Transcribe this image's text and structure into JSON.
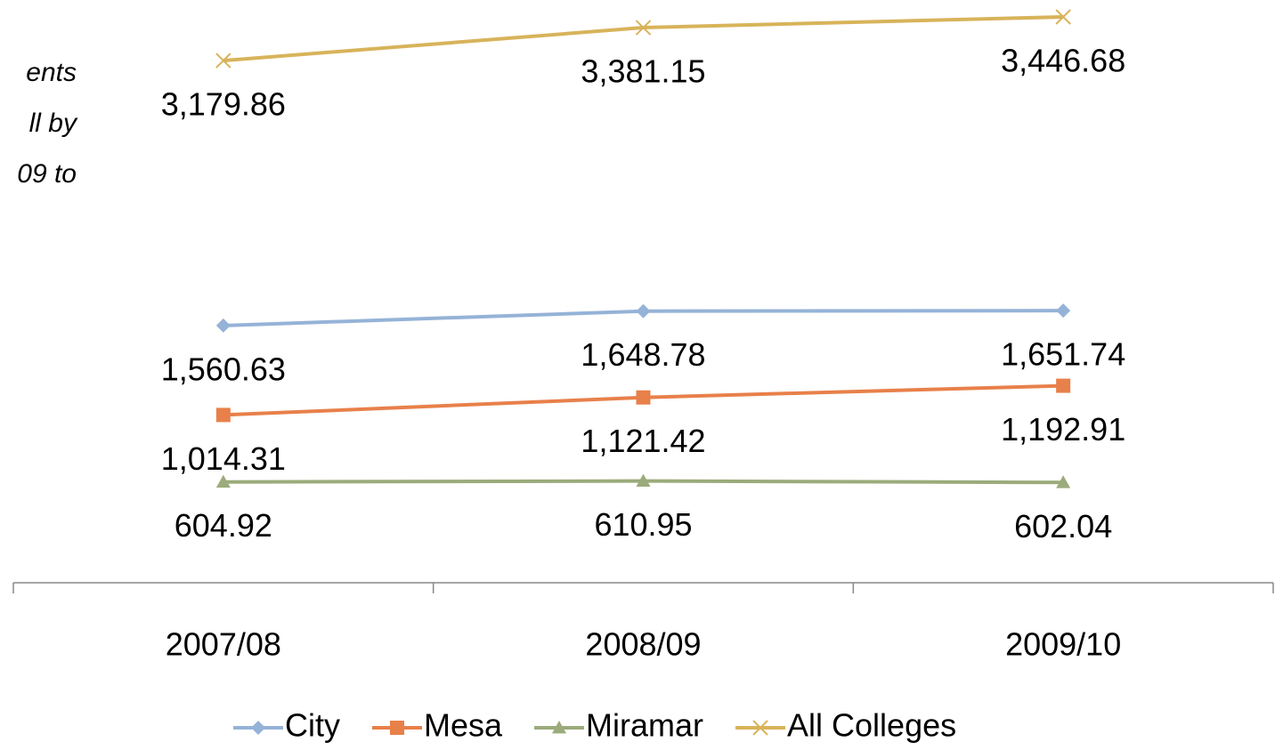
{
  "chart_data": {
    "type": "line",
    "annotations": [
      "ents",
      "ll by",
      "09 to"
    ],
    "categories": [
      "2007/08",
      "2008/09",
      "2009/10"
    ],
    "series": [
      {
        "name": "City",
        "color": "#95b3d7",
        "marker": "diamond",
        "values": [
          1560.63,
          1648.78,
          1651.74
        ],
        "value_labels": [
          "1,560.63",
          "1,648.78",
          "1,651.74"
        ]
      },
      {
        "name": "Mesa",
        "color": "#e8804a",
        "marker": "square",
        "values": [
          1014.31,
          1121.42,
          1192.91
        ],
        "value_labels": [
          "1,014.31",
          "1,121.42",
          "1,192.91"
        ]
      },
      {
        "name": "Miramar",
        "color": "#9bab7b",
        "marker": "triangle",
        "values": [
          604.92,
          610.95,
          602.04
        ],
        "value_labels": [
          "604.92",
          "610.95",
          "602.04"
        ]
      },
      {
        "name": "All Colleges",
        "color": "#d8b35a",
        "marker": "x",
        "values": [
          3179.86,
          3381.15,
          3446.68
        ],
        "value_labels": [
          "3,179.86",
          "3,381.15",
          "3,446.68"
        ]
      }
    ],
    "ylim": [
      0,
      3550
    ],
    "legend": "bottom"
  }
}
